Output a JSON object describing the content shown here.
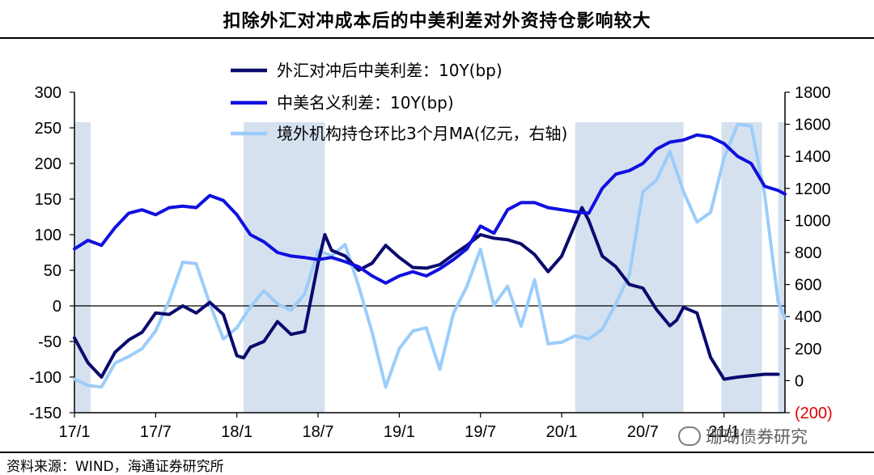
{
  "title": "扣除外汇对冲成本后的中美利差对外资持仓影响较大",
  "source": "资料来源：WIND，海通证券研究所",
  "watermark": "珊瑚债券研究",
  "chart_data": {
    "type": "line",
    "title": "扣除外汇对冲成本后的中美利差对外资持仓影响较大",
    "x_tick_labels": [
      "17/1",
      "17/7",
      "18/1",
      "18/7",
      "19/1",
      "19/7",
      "20/1",
      "20/7",
      "21/1"
    ],
    "x_range_months": [
      0,
      52.5
    ],
    "y_left": {
      "ylim": [
        -150,
        300
      ],
      "ticks": [
        -150,
        -100,
        -50,
        0,
        50,
        100,
        150,
        200,
        250,
        300
      ]
    },
    "y_right": {
      "ylim": [
        -200,
        1800
      ],
      "ticks": [
        -200,
        0,
        200,
        400,
        600,
        800,
        1000,
        1200,
        1400,
        1600,
        1800
      ],
      "tick_labels": [
        "(200)",
        "0",
        "200",
        "400",
        "600",
        "800",
        "1000",
        "1200",
        "1400",
        "1600",
        "1800"
      ]
    },
    "shaded_periods": [
      [
        0,
        1.2
      ],
      [
        12.5,
        18.5
      ],
      [
        37,
        45
      ],
      [
        47.8,
        50.8
      ],
      [
        52,
        52.5
      ]
    ],
    "series": [
      {
        "name": "外汇对冲后中美利差：10Y(bp)",
        "axis": "left",
        "color": "#0a0a6e",
        "points": [
          [
            0,
            -45
          ],
          [
            1,
            -80
          ],
          [
            2,
            -100
          ],
          [
            3,
            -65
          ],
          [
            4,
            -48
          ],
          [
            5,
            -37
          ],
          [
            6,
            -10
          ],
          [
            7,
            -12
          ],
          [
            8,
            0
          ],
          [
            9,
            -10
          ],
          [
            10,
            5
          ],
          [
            11,
            -12
          ],
          [
            12,
            -70
          ],
          [
            12.5,
            -73
          ],
          [
            13,
            -58
          ],
          [
            14,
            -50
          ],
          [
            15,
            -22
          ],
          [
            16,
            -40
          ],
          [
            17,
            -36
          ],
          [
            18,
            60
          ],
          [
            18.5,
            100
          ],
          [
            19,
            78
          ],
          [
            20,
            70
          ],
          [
            21,
            50
          ],
          [
            22,
            60
          ],
          [
            23,
            85
          ],
          [
            24,
            68
          ],
          [
            25,
            54
          ],
          [
            26,
            53
          ],
          [
            27,
            58
          ],
          [
            28,
            72
          ],
          [
            29,
            85
          ],
          [
            30,
            100
          ],
          [
            31,
            95
          ],
          [
            32,
            93
          ],
          [
            33,
            87
          ],
          [
            34,
            72
          ],
          [
            35,
            48
          ],
          [
            36,
            70
          ],
          [
            37,
            115
          ],
          [
            37.5,
            138
          ],
          [
            38,
            120
          ],
          [
            39,
            70
          ],
          [
            40,
            55
          ],
          [
            41,
            30
          ],
          [
            42,
            25
          ],
          [
            43,
            -5
          ],
          [
            44,
            -28
          ],
          [
            44.5,
            -20
          ],
          [
            45,
            -2
          ],
          [
            46,
            -10
          ],
          [
            47,
            -72
          ],
          [
            48,
            -103
          ],
          [
            49,
            -100
          ],
          [
            50,
            -98
          ],
          [
            51,
            -96
          ],
          [
            52,
            -96
          ]
        ]
      },
      {
        "name": "中美名义利差：10Y(bp)",
        "axis": "left",
        "color": "#1010e0",
        "points": [
          [
            0,
            80
          ],
          [
            1,
            92
          ],
          [
            2,
            85
          ],
          [
            3,
            110
          ],
          [
            4,
            130
          ],
          [
            5,
            135
          ],
          [
            6,
            128
          ],
          [
            7,
            138
          ],
          [
            8,
            140
          ],
          [
            9,
            138
          ],
          [
            10,
            155
          ],
          [
            11,
            148
          ],
          [
            12,
            128
          ],
          [
            13,
            100
          ],
          [
            14,
            90
          ],
          [
            15,
            75
          ],
          [
            16,
            70
          ],
          [
            17,
            68
          ],
          [
            18,
            65
          ],
          [
            19,
            68
          ],
          [
            20,
            62
          ],
          [
            21,
            55
          ],
          [
            22,
            42
          ],
          [
            23,
            32
          ],
          [
            24,
            42
          ],
          [
            25,
            48
          ],
          [
            26,
            42
          ],
          [
            27,
            52
          ],
          [
            28,
            65
          ],
          [
            29,
            80
          ],
          [
            30,
            112
          ],
          [
            31,
            102
          ],
          [
            32,
            135
          ],
          [
            33,
            145
          ],
          [
            34,
            145
          ],
          [
            35,
            138
          ],
          [
            36,
            135
          ],
          [
            37,
            132
          ],
          [
            38,
            130
          ],
          [
            39,
            165
          ],
          [
            40,
            185
          ],
          [
            41,
            190
          ],
          [
            42,
            200
          ],
          [
            43,
            220
          ],
          [
            44,
            230
          ],
          [
            45,
            233
          ],
          [
            46,
            240
          ],
          [
            47,
            237
          ],
          [
            48,
            228
          ],
          [
            49,
            210
          ],
          [
            50,
            200
          ],
          [
            51,
            168
          ],
          [
            52,
            162
          ],
          [
            52.5,
            157
          ]
        ]
      },
      {
        "name": "境外机构持仓环比3个月MA(亿元，右轴)",
        "axis": "right",
        "color": "#9ccdfa",
        "points": [
          [
            0,
            10
          ],
          [
            1,
            -30
          ],
          [
            2,
            -40
          ],
          [
            3,
            110
          ],
          [
            4,
            150
          ],
          [
            5,
            200
          ],
          [
            6,
            310
          ],
          [
            7,
            500
          ],
          [
            8,
            740
          ],
          [
            9,
            730
          ],
          [
            10,
            480
          ],
          [
            11,
            260
          ],
          [
            12,
            330
          ],
          [
            13,
            460
          ],
          [
            14,
            560
          ],
          [
            15,
            480
          ],
          [
            16,
            440
          ],
          [
            17,
            540
          ],
          [
            18,
            810
          ],
          [
            19,
            780
          ],
          [
            20,
            850
          ],
          [
            21,
            590
          ],
          [
            22,
            300
          ],
          [
            23,
            -40
          ],
          [
            24,
            200
          ],
          [
            25,
            310
          ],
          [
            26,
            330
          ],
          [
            27,
            70
          ],
          [
            28,
            420
          ],
          [
            29,
            590
          ],
          [
            30,
            820
          ],
          [
            31,
            470
          ],
          [
            32,
            590
          ],
          [
            33,
            340
          ],
          [
            34,
            630
          ],
          [
            35,
            230
          ],
          [
            36,
            240
          ],
          [
            37,
            280
          ],
          [
            38,
            260
          ],
          [
            39,
            320
          ],
          [
            40,
            480
          ],
          [
            41,
            660
          ],
          [
            42,
            1180
          ],
          [
            43,
            1250
          ],
          [
            44,
            1430
          ],
          [
            45,
            1180
          ],
          [
            46,
            990
          ],
          [
            47,
            1050
          ],
          [
            48,
            1390
          ],
          [
            49,
            1600
          ],
          [
            50,
            1590
          ],
          [
            51,
            1160
          ],
          [
            52,
            490
          ],
          [
            52.5,
            390
          ]
        ]
      }
    ]
  }
}
